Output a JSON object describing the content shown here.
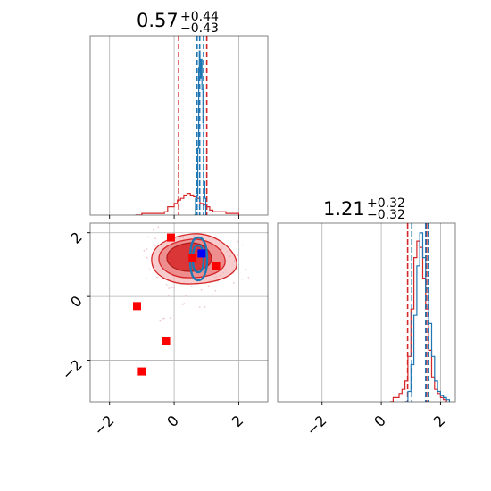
{
  "chart_data": [
    {
      "type": "histogram",
      "panel": "marginal-param-1",
      "title": {
        "value": "0.57",
        "plus": "+0.44",
        "minus": "−0.43"
      },
      "xlim": [
        -2.6,
        2.9
      ],
      "grid": true,
      "series": [
        {
          "color": "#d62728",
          "bins": [
            [
              -1.2,
              0.0
            ],
            [
              -1.1,
              0.0
            ],
            [
              -1.0,
              0.01
            ],
            [
              -0.9,
              0.01
            ],
            [
              -0.8,
              0.01
            ],
            [
              -0.7,
              0.01
            ],
            [
              -0.6,
              0.01
            ],
            [
              -0.5,
              0.01
            ],
            [
              -0.4,
              0.01
            ],
            [
              -0.3,
              0.02
            ],
            [
              -0.2,
              0.05
            ],
            [
              -0.1,
              0.05
            ],
            [
              0.0,
              0.07
            ],
            [
              0.1,
              0.09
            ],
            [
              0.2,
              0.1
            ],
            [
              0.3,
              0.12
            ],
            [
              0.4,
              0.13
            ],
            [
              0.5,
              0.12
            ],
            [
              0.6,
              0.11
            ],
            [
              0.7,
              0.1
            ],
            [
              0.8,
              0.07
            ],
            [
              0.9,
              0.06
            ],
            [
              1.0,
              0.05
            ],
            [
              1.1,
              0.03
            ],
            [
              1.2,
              0.02
            ],
            [
              1.3,
              0.02
            ],
            [
              1.4,
              0.02
            ],
            [
              1.5,
              0.02
            ],
            [
              1.6,
              0.01
            ],
            [
              1.7,
              0.01
            ],
            [
              1.8,
              0.01
            ],
            [
              1.9,
              0.01
            ],
            [
              2.0,
              0.0
            ]
          ],
          "quantile_lines": [
            0.14,
            1.01
          ]
        },
        {
          "color": "#1f77b4",
          "bins": [
            [
              0.62,
              0.0
            ],
            [
              0.66,
              0.1
            ],
            [
              0.7,
              0.12
            ],
            [
              0.73,
              0.4
            ],
            [
              0.76,
              0.88
            ],
            [
              0.78,
              0.98
            ],
            [
              0.8,
              0.82
            ],
            [
              0.83,
              0.93
            ],
            [
              0.86,
              0.75
            ],
            [
              0.89,
              0.55
            ],
            [
              0.92,
              0.2
            ],
            [
              0.95,
              0.1
            ],
            [
              0.98,
              0.02
            ]
          ],
          "quantile_lines": [
            0.71,
            0.79,
            0.91
          ]
        }
      ]
    },
    {
      "type": "scatter",
      "panel": "joint-param-1-vs-param-2",
      "xlim": [
        -2.6,
        2.9
      ],
      "ylim": [
        -3.3,
        2.3
      ],
      "xticks": [
        "−2",
        "0",
        "2"
      ],
      "yticks": [
        "2",
        "0",
        "−2"
      ],
      "grid": true,
      "series": [
        {
          "color": "#ff0000",
          "marker": "square",
          "points": [
            [
              -0.1,
              1.85
            ],
            [
              0.57,
              1.21
            ],
            [
              1.3,
              0.95
            ],
            [
              -1.15,
              -0.3
            ],
            [
              -0.25,
              -1.4
            ],
            [
              -1.0,
              -2.35
            ]
          ]
        },
        {
          "color": "#0000ff",
          "marker": "square",
          "points": [
            [
              0.85,
              1.35
            ]
          ]
        }
      ]
    },
    {
      "type": "histogram",
      "panel": "marginal-param-2",
      "title": {
        "value": "1.21",
        "plus": "+0.32",
        "minus": "−0.32"
      },
      "xlim": [
        -3.5,
        2.5
      ],
      "xticks": [
        "−2",
        "0",
        "2"
      ],
      "grid": true,
      "series": [
        {
          "color": "#d62728",
          "bins": [
            [
              0.3,
              0.0
            ],
            [
              0.4,
              0.02
            ],
            [
              0.5,
              0.02
            ],
            [
              0.6,
              0.04
            ],
            [
              0.7,
              0.06
            ],
            [
              0.8,
              0.1
            ],
            [
              0.9,
              0.22
            ],
            [
              1.0,
              0.45
            ],
            [
              1.1,
              0.7
            ],
            [
              1.2,
              0.78
            ],
            [
              1.3,
              0.75
            ],
            [
              1.4,
              0.6
            ],
            [
              1.5,
              0.45
            ],
            [
              1.6,
              0.25
            ],
            [
              1.7,
              0.12
            ],
            [
              1.8,
              0.06
            ],
            [
              1.9,
              0.04
            ],
            [
              2.0,
              0.02
            ],
            [
              2.1,
              0.01
            ],
            [
              2.2,
              0.0
            ]
          ],
          "quantile_lines": [
            0.89,
            1.53
          ]
        },
        {
          "color": "#1f77b4",
          "bins": [
            [
              0.8,
              0.0
            ],
            [
              0.9,
              0.05
            ],
            [
              1.0,
              0.18
            ],
            [
              1.1,
              0.42
            ],
            [
              1.2,
              0.66
            ],
            [
              1.3,
              0.82
            ],
            [
              1.4,
              0.7
            ],
            [
              1.5,
              0.55
            ],
            [
              1.6,
              0.38
            ],
            [
              1.7,
              0.22
            ],
            [
              1.8,
              0.1
            ],
            [
              1.9,
              0.05
            ],
            [
              2.0,
              0.03
            ],
            [
              2.1,
              0.02
            ],
            [
              2.2,
              0.01
            ],
            [
              2.3,
              0.0
            ]
          ],
          "quantile_lines": [
            1.03,
            1.5,
            1.59
          ]
        }
      ]
    }
  ]
}
